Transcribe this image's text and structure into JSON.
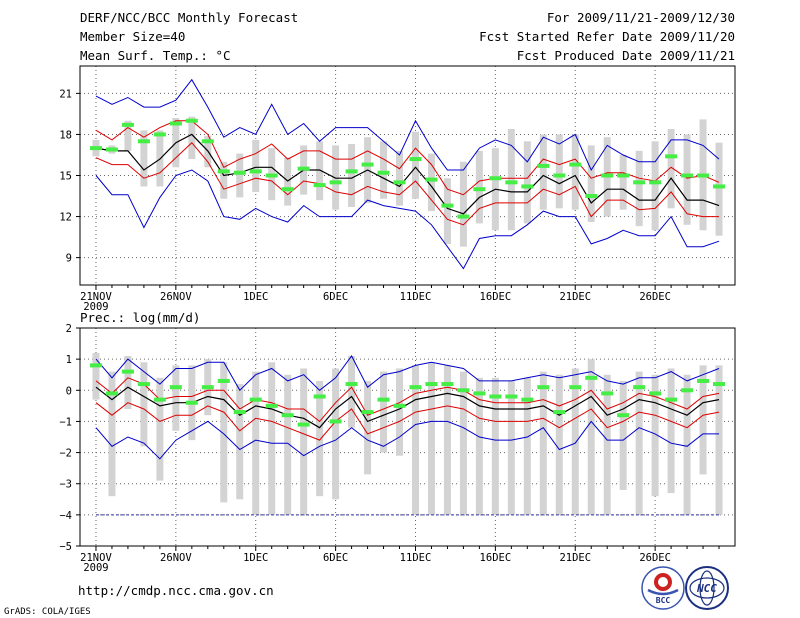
{
  "header": {
    "title": "DERF/NCC/BCC Monthly Forecast",
    "member_size": "Member Size=40",
    "variable": "Mean Surf. Temp.: °C",
    "period": "For 2009/11/21-2009/12/30",
    "start_date": "Fcst Started Refer Date 2009/11/20",
    "produced_date": "Fcst Produced Date 2009/11/21"
  },
  "footer": {
    "url": "http://cmdp.ncc.cma.gov.cn",
    "credit": "GrADS: COLA/IGES",
    "logo_bcc_text": "BCC",
    "logo_ncc_text": "NCC"
  },
  "colors": {
    "extreme_line": "#0000cc",
    "spread_line": "#dd0000",
    "mean_line": "#000000",
    "bar": "#d3d3d3",
    "marker": "#44ee44",
    "baseline": "#3333aa"
  },
  "chart_data": [
    {
      "type": "line",
      "title": "Mean Surf. Temp.: °C",
      "x_tick_labels": [
        "21NOV",
        "26NOV",
        "1DEC",
        "6DEC",
        "11DEC",
        "16DEC",
        "21DEC",
        "26DEC"
      ],
      "x_tick_days": [
        1,
        6,
        11,
        16,
        21,
        26,
        31,
        36
      ],
      "x_year_label": "2009",
      "xlim": [
        0,
        41
      ],
      "ylim": [
        7,
        23
      ],
      "yticks": [
        9,
        12,
        15,
        18,
        21
      ],
      "days": [
        1,
        2,
        3,
        4,
        5,
        6,
        7,
        8,
        9,
        10,
        11,
        12,
        13,
        14,
        15,
        16,
        17,
        18,
        19,
        20,
        21,
        22,
        23,
        24,
        25,
        26,
        27,
        28,
        29,
        30,
        31,
        32,
        33,
        34,
        35,
        36,
        37,
        38,
        39,
        40
      ],
      "series": [
        {
          "name": "max",
          "values": [
            20.8,
            20.2,
            20.7,
            20.0,
            20.0,
            20.5,
            22.0,
            20.0,
            17.8,
            18.5,
            18.0,
            20.2,
            18.0,
            18.8,
            17.5,
            18.5,
            18.5,
            18.5,
            17.5,
            16.5,
            19.0,
            17.0,
            15.4,
            15.4,
            17.0,
            17.6,
            17.2,
            16.0,
            17.8,
            17.3,
            18.0,
            15.4,
            17.2,
            16.5,
            16.0,
            16.0,
            17.6,
            17.6,
            17.2,
            16.2
          ]
        },
        {
          "name": "upper_spread",
          "values": [
            18.3,
            17.6,
            18.5,
            17.8,
            18.5,
            19.0,
            19.0,
            18.0,
            15.6,
            16.2,
            16.6,
            17.3,
            16.2,
            16.8,
            16.8,
            16.2,
            16.2,
            16.8,
            16.2,
            15.5,
            17.0,
            15.8,
            14.0,
            13.6,
            14.6,
            14.8,
            14.8,
            14.8,
            16.2,
            15.8,
            16.2,
            14.8,
            15.2,
            15.2,
            14.8,
            14.6,
            15.6,
            14.8,
            15.0,
            14.5
          ]
        },
        {
          "name": "mean",
          "values": [
            17.0,
            16.8,
            16.8,
            15.4,
            16.2,
            17.4,
            18.0,
            16.8,
            15.0,
            15.2,
            15.6,
            15.6,
            14.6,
            15.4,
            15.4,
            14.8,
            14.8,
            15.4,
            14.8,
            14.2,
            15.6,
            14.2,
            12.6,
            12.2,
            13.4,
            14.0,
            13.8,
            13.8,
            15.0,
            14.4,
            15.0,
            13.0,
            14.0,
            14.0,
            13.2,
            13.2,
            14.8,
            13.2,
            13.2,
            12.8
          ]
        },
        {
          "name": "lower_spread",
          "values": [
            16.3,
            15.8,
            15.8,
            14.8,
            15.2,
            16.3,
            17.4,
            16.0,
            14.0,
            14.4,
            14.8,
            14.6,
            13.6,
            14.6,
            14.4,
            13.8,
            13.6,
            14.2,
            13.8,
            13.6,
            14.6,
            13.2,
            11.8,
            11.4,
            12.6,
            13.0,
            13.0,
            13.0,
            14.0,
            13.6,
            14.2,
            12.0,
            13.2,
            13.2,
            12.5,
            12.6,
            13.8,
            12.2,
            12.0,
            12.0
          ]
        },
        {
          "name": "min",
          "values": [
            15.0,
            13.6,
            13.6,
            11.2,
            13.4,
            15.0,
            15.4,
            14.6,
            12.0,
            11.8,
            12.6,
            12.0,
            11.6,
            12.8,
            12.0,
            12.0,
            12.0,
            13.2,
            12.8,
            12.6,
            12.4,
            11.4,
            9.8,
            8.2,
            10.4,
            10.6,
            10.6,
            11.4,
            12.4,
            12.0,
            12.0,
            10.0,
            10.4,
            11.0,
            10.6,
            10.6,
            12.0,
            9.8,
            9.8,
            10.2
          ]
        },
        {
          "name": "bar_top",
          "values": [
            17.6,
            17.2,
            19.0,
            18.3,
            18.3,
            19.2,
            19.3,
            17.9,
            16.0,
            16.6,
            17.6,
            17.0,
            16.3,
            17.2,
            17.5,
            17.2,
            17.3,
            17.8,
            17.5,
            16.8,
            18.2,
            16.6,
            14.8,
            16.0,
            16.8,
            17.0,
            18.4,
            17.5,
            18.0,
            18.0,
            18.0,
            17.2,
            17.8,
            16.5,
            16.8,
            17.5,
            18.4,
            18.0,
            19.1,
            17.4
          ]
        },
        {
          "name": "bar_bottom",
          "values": [
            16.4,
            16.6,
            16.8,
            14.2,
            14.2,
            15.6,
            16.2,
            15.6,
            13.3,
            13.4,
            13.8,
            13.2,
            12.8,
            13.6,
            13.2,
            12.5,
            12.7,
            13.0,
            13.3,
            12.8,
            13.3,
            12.4,
            10.0,
            9.8,
            11.5,
            11.0,
            11.0,
            11.5,
            12.5,
            12.6,
            12.5,
            11.6,
            12.0,
            12.5,
            11.3,
            11.0,
            12.6,
            11.4,
            11.0,
            10.6
          ]
        },
        {
          "name": "observed",
          "values": [
            17.0,
            16.9,
            18.7,
            17.5,
            18.0,
            18.8,
            19.0,
            17.5,
            15.3,
            15.2,
            15.3,
            15.0,
            14.0,
            15.5,
            14.3,
            14.5,
            15.3,
            15.8,
            15.2,
            14.5,
            16.2,
            14.7,
            12.8,
            12.0,
            14.0,
            14.8,
            14.5,
            14.2,
            15.7,
            15.0,
            15.8,
            13.5,
            15.0,
            15.0,
            14.5,
            14.5,
            16.4,
            15.0,
            15.0,
            14.2
          ]
        }
      ]
    },
    {
      "type": "line",
      "title": "Prec.: log(mm/d)",
      "x_tick_labels": [
        "21NOV",
        "26NOV",
        "1DEC",
        "6DEC",
        "11DEC",
        "16DEC",
        "21DEC",
        "26DEC"
      ],
      "x_tick_days": [
        1,
        6,
        11,
        16,
        21,
        26,
        31,
        36
      ],
      "x_year_label": "2009",
      "xlim": [
        0,
        41
      ],
      "ylim": [
        -5,
        2
      ],
      "yticks": [
        -5,
        -4,
        -3,
        -2,
        -1,
        0,
        1,
        2
      ],
      "baseline": -4,
      "days": [
        1,
        2,
        3,
        4,
        5,
        6,
        7,
        8,
        9,
        10,
        11,
        12,
        13,
        14,
        15,
        16,
        17,
        18,
        19,
        20,
        21,
        22,
        23,
        24,
        25,
        26,
        27,
        28,
        29,
        30,
        31,
        32,
        33,
        34,
        35,
        36,
        37,
        38,
        39,
        40
      ],
      "series": [
        {
          "name": "max",
          "values": [
            1.0,
            0.4,
            1.0,
            0.6,
            0.2,
            0.7,
            0.7,
            0.9,
            0.9,
            0.0,
            0.5,
            0.7,
            0.3,
            0.5,
            0.0,
            0.4,
            1.1,
            0.1,
            0.5,
            0.6,
            0.8,
            0.9,
            0.8,
            0.7,
            0.3,
            0.3,
            0.3,
            0.4,
            0.5,
            0.4,
            0.5,
            0.6,
            0.3,
            0.2,
            0.4,
            0.4,
            0.6,
            0.3,
            0.5,
            0.7
          ]
        },
        {
          "name": "upper_spread",
          "values": [
            0.3,
            -0.1,
            0.4,
            0.2,
            -0.3,
            -0.2,
            -0.2,
            0.0,
            0.0,
            -0.6,
            -0.3,
            -0.4,
            -0.6,
            -0.6,
            -1.0,
            -0.4,
            0.1,
            -0.8,
            -0.6,
            -0.4,
            -0.1,
            0.0,
            0.1,
            0.0,
            -0.3,
            -0.4,
            -0.4,
            -0.4,
            -0.3,
            -0.5,
            -0.3,
            0.0,
            -0.6,
            -0.4,
            -0.1,
            -0.2,
            -0.4,
            -0.6,
            -0.2,
            -0.1
          ]
        },
        {
          "name": "mean",
          "values": [
            0.1,
            -0.3,
            0.1,
            -0.2,
            -0.5,
            -0.4,
            -0.4,
            -0.2,
            -0.3,
            -0.8,
            -0.5,
            -0.6,
            -0.8,
            -0.9,
            -1.2,
            -0.6,
            -0.2,
            -1.0,
            -0.8,
            -0.6,
            -0.3,
            -0.2,
            -0.1,
            -0.2,
            -0.5,
            -0.6,
            -0.6,
            -0.6,
            -0.5,
            -0.8,
            -0.5,
            -0.2,
            -0.8,
            -0.6,
            -0.3,
            -0.4,
            -0.6,
            -0.8,
            -0.4,
            -0.3
          ]
        },
        {
          "name": "lower_spread",
          "values": [
            -0.4,
            -0.8,
            -0.4,
            -0.6,
            -1.0,
            -0.8,
            -0.8,
            -0.5,
            -0.7,
            -1.3,
            -0.9,
            -1.0,
            -1.2,
            -1.4,
            -1.6,
            -1.0,
            -0.6,
            -1.4,
            -1.2,
            -1.0,
            -0.7,
            -0.6,
            -0.5,
            -0.6,
            -0.9,
            -1.0,
            -1.0,
            -1.0,
            -0.9,
            -1.2,
            -0.9,
            -0.6,
            -1.2,
            -1.0,
            -0.7,
            -0.8,
            -1.0,
            -1.2,
            -0.8,
            -0.7
          ]
        },
        {
          "name": "min",
          "values": [
            -1.2,
            -1.8,
            -1.5,
            -1.7,
            -2.2,
            -1.6,
            -1.3,
            -1.0,
            -1.4,
            -1.9,
            -1.6,
            -1.7,
            -1.7,
            -2.1,
            -1.8,
            -1.6,
            -1.2,
            -1.6,
            -1.8,
            -1.5,
            -1.1,
            -1.0,
            -1.0,
            -1.2,
            -1.5,
            -1.6,
            -1.6,
            -1.5,
            -1.2,
            -1.9,
            -1.7,
            -1.0,
            -1.6,
            -1.6,
            -1.2,
            -1.4,
            -1.7,
            -1.8,
            -1.4,
            -1.4
          ]
        },
        {
          "name": "bar_top",
          "values": [
            1.2,
            0.6,
            1.1,
            0.9,
            0.4,
            0.8,
            0.8,
            1.0,
            0.9,
            0.2,
            0.6,
            0.9,
            0.5,
            0.7,
            0.3,
            0.7,
            1.1,
            0.3,
            0.6,
            0.7,
            0.8,
            0.9,
            0.8,
            0.6,
            0.4,
            0.4,
            0.3,
            0.4,
            0.6,
            0.5,
            0.7,
            1.0,
            0.5,
            0.3,
            0.6,
            0.5,
            0.7,
            0.5,
            0.8,
            0.8
          ]
        },
        {
          "name": "bar_bottom",
          "values": [
            -0.3,
            -3.4,
            -0.6,
            -1.8,
            -2.9,
            -1.3,
            -1.6,
            -0.8,
            -3.6,
            -3.5,
            -4.0,
            -4.0,
            -4.0,
            -4.0,
            -3.4,
            -3.5,
            -1.2,
            -2.7,
            -2.0,
            -2.1,
            -4.0,
            -4.0,
            -4.0,
            -4.0,
            -4.0,
            -4.0,
            -4.0,
            -4.0,
            -4.0,
            -4.0,
            -4.0,
            -4.0,
            -4.0,
            -3.2,
            -4.0,
            -3.4,
            -3.3,
            -4.0,
            -2.7,
            -4.0
          ]
        },
        {
          "name": "observed",
          "values": [
            0.8,
            -0.1,
            0.6,
            0.2,
            -0.3,
            0.1,
            -0.4,
            0.1,
            0.3,
            -0.7,
            -0.3,
            -0.5,
            -0.8,
            -1.1,
            -0.2,
            -1.0,
            0.2,
            -0.7,
            -0.3,
            -0.5,
            0.1,
            0.2,
            0.2,
            0.0,
            -0.1,
            -0.2,
            -0.2,
            -0.3,
            0.1,
            -0.7,
            0.1,
            0.4,
            -0.1,
            -0.8,
            0.1,
            -0.1,
            -0.3,
            0.0,
            0.3,
            0.2
          ]
        }
      ]
    }
  ]
}
